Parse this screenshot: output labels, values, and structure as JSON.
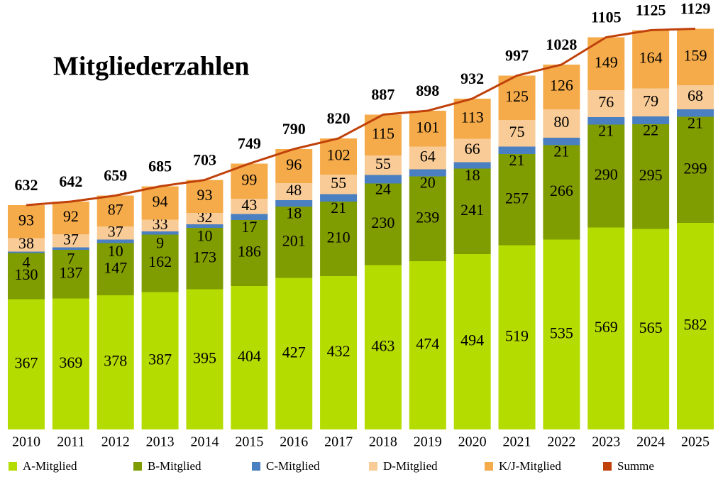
{
  "chart_data": {
    "type": "bar",
    "stacked": true,
    "title": "Mitgliederzahlen",
    "categories": [
      "2010",
      "2011",
      "2012",
      "2013",
      "2014",
      "2015",
      "2016",
      "2017",
      "2018",
      "2019",
      "2020",
      "2021",
      "2022",
      "2023",
      "2024",
      "2025"
    ],
    "ylim": [
      0,
      1200
    ],
    "grid": false,
    "legend": "bottom",
    "series": [
      {
        "name": "A-Mitglied",
        "color": "#b4dc00",
        "values": [
          367,
          369,
          378,
          387,
          395,
          404,
          427,
          432,
          463,
          474,
          494,
          519,
          535,
          569,
          565,
          582
        ]
      },
      {
        "name": "B-Mitglied",
        "color": "#7f9c00",
        "values": [
          130,
          137,
          147,
          162,
          173,
          186,
          201,
          210,
          230,
          239,
          241,
          257,
          266,
          290,
          295,
          299
        ]
      },
      {
        "name": "C-Mitglied",
        "color": "#4a7fc1",
        "values": [
          4,
          7,
          10,
          9,
          10,
          17,
          18,
          21,
          24,
          20,
          18,
          21,
          21,
          21,
          22,
          21
        ]
      },
      {
        "name": "D-Mitglied",
        "color": "#f9cb96",
        "values": [
          38,
          37,
          37,
          33,
          32,
          43,
          48,
          55,
          55,
          64,
          66,
          75,
          80,
          76,
          79,
          68
        ]
      },
      {
        "name": "K/J-Mitglied",
        "color": "#f5ab4a",
        "values": [
          93,
          92,
          87,
          94,
          93,
          99,
          96,
          102,
          115,
          101,
          113,
          125,
          126,
          149,
          164,
          159
        ]
      },
      {
        "name": "Summe",
        "color": "#c0410a",
        "type": "line",
        "values": [
          632,
          642,
          659,
          685,
          703,
          749,
          790,
          820,
          887,
          898,
          932,
          997,
          1028,
          1105,
          1125,
          1129
        ]
      }
    ]
  }
}
